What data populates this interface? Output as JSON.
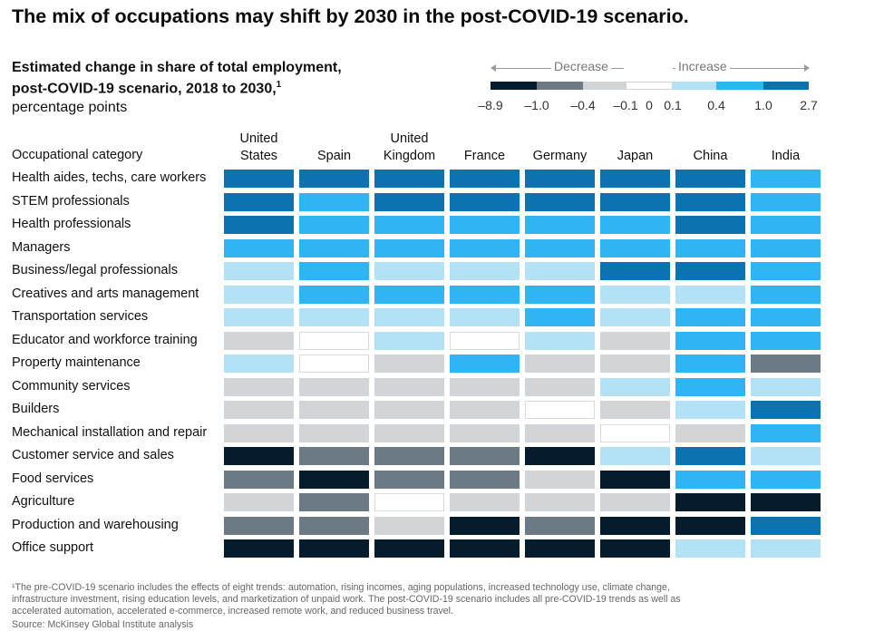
{
  "title": "The mix of occupations may shift by 2030 in the post-COVID-19 scenario.",
  "subtitle": {
    "line1": "Estimated change in share of total employment,",
    "line2": "post-COVID-19 scenario, 2018 to 2030,",
    "line2_sup": "1",
    "line3": "percentage points"
  },
  "legend": {
    "decrease_label": "Decrease",
    "increase_label": "Increase",
    "ticks": [
      "–8.9",
      "–1.0",
      "–0.4",
      "–0.1",
      "0",
      "0.1",
      "0.4",
      "1.0",
      "2.7"
    ],
    "colors": [
      "#051c2c",
      "#6b7a85",
      "#d2d5d8",
      "#ffffff",
      "#b3e2f7",
      "#2fb5f3",
      "#0b73b0"
    ]
  },
  "colors": {
    "d3": "#051c2c",
    "d2": "#6b7a85",
    "d1": "#d2d5d8",
    "n": "#ffffff",
    "i1": "#b3e2f7",
    "i2": "#2fb5f3",
    "i3": "#0b73b0"
  },
  "chart_data": {
    "type": "heatmap",
    "title": "The mix of occupations may shift by 2030 in the post-COVID-19 scenario.",
    "value_scale_bins": [
      "–8.9 to –1.0",
      "–1.0 to –0.4",
      "–0.4 to –0.1",
      "–0.1 to 0.1",
      "0.1 to 0.4",
      "0.4 to 1.0",
      "1.0 to 2.7"
    ],
    "row_header": "Occupational category",
    "columns": [
      {
        "line1": "United",
        "line2": "States"
      },
      {
        "line1": "",
        "line2": "Spain"
      },
      {
        "line1": "United",
        "line2": "Kingdom"
      },
      {
        "line1": "",
        "line2": "France"
      },
      {
        "line1": "",
        "line2": "Germany"
      },
      {
        "line1": "",
        "line2": "Japan"
      },
      {
        "line1": "",
        "line2": "China"
      },
      {
        "line1": "",
        "line2": "India"
      }
    ],
    "rows": [
      {
        "label": "Health aides, techs, care workers",
        "values": [
          "i3",
          "i3",
          "i3",
          "i3",
          "i3",
          "i3",
          "i3",
          "i2"
        ]
      },
      {
        "label": "STEM professionals",
        "values": [
          "i3",
          "i2",
          "i3",
          "i3",
          "i3",
          "i3",
          "i3",
          "i2"
        ]
      },
      {
        "label": "Health professionals",
        "values": [
          "i3",
          "i2",
          "i2",
          "i2",
          "i2",
          "i2",
          "i3",
          "i2"
        ]
      },
      {
        "label": "Managers",
        "values": [
          "i2",
          "i2",
          "i2",
          "i2",
          "i2",
          "i2",
          "i2",
          "i2"
        ]
      },
      {
        "label": "Business/legal professionals",
        "values": [
          "i1",
          "i2",
          "i1",
          "i1",
          "i1",
          "i3",
          "i3",
          "i2"
        ]
      },
      {
        "label": "Creatives and arts management",
        "values": [
          "i1",
          "i2",
          "i2",
          "i2",
          "i2",
          "i1",
          "i1",
          "i2"
        ]
      },
      {
        "label": "Transportation services",
        "values": [
          "i1",
          "i1",
          "i1",
          "i1",
          "i2",
          "i1",
          "i2",
          "i2"
        ]
      },
      {
        "label": "Educator and workforce training",
        "values": [
          "d1",
          "n",
          "i1",
          "n",
          "i1",
          "d1",
          "i2",
          "i2"
        ]
      },
      {
        "label": "Property maintenance",
        "values": [
          "i1",
          "n",
          "d1",
          "i2",
          "d1",
          "d1",
          "i2",
          "d2"
        ]
      },
      {
        "label": "Community services",
        "values": [
          "d1",
          "d1",
          "d1",
          "d1",
          "d1",
          "i1",
          "i2",
          "i1"
        ]
      },
      {
        "label": "Builders",
        "values": [
          "d1",
          "d1",
          "d1",
          "d1",
          "n",
          "d1",
          "i1",
          "i3"
        ]
      },
      {
        "label": "Mechanical installation and repair",
        "values": [
          "d1",
          "d1",
          "d1",
          "d1",
          "d1",
          "n",
          "d1",
          "i2"
        ]
      },
      {
        "label": "Customer service and sales",
        "values": [
          "d3",
          "d2",
          "d2",
          "d2",
          "d3",
          "i1",
          "i3",
          "i1"
        ]
      },
      {
        "label": "Food services",
        "values": [
          "d2",
          "d3",
          "d2",
          "d2",
          "d1",
          "d3",
          "i2",
          "i2"
        ]
      },
      {
        "label": "Agriculture",
        "values": [
          "d1",
          "d2",
          "n",
          "d1",
          "d1",
          "d1",
          "d3",
          "d3"
        ]
      },
      {
        "label": "Production and warehousing",
        "values": [
          "d2",
          "d2",
          "d1",
          "d3",
          "d2",
          "d3",
          "d3",
          "i3"
        ]
      },
      {
        "label": "Office support",
        "values": [
          "d3",
          "d3",
          "d3",
          "d3",
          "d3",
          "d3",
          "i1",
          "i1"
        ]
      }
    ]
  },
  "footnote": {
    "line1": "¹The pre-COVID-19 scenario includes the effects of eight trends: automation, rising incomes, aging populations, increased technology use, climate change,",
    "line2": "infrastructure investment, rising education levels, and marketization of unpaid work. The post-COVID-19 scenario includes all pre-COVID-19 trends as well as",
    "line3": "accelerated automation, accelerated e-commerce, increased remote work, and reduced business travel.",
    "source": "Source: McKinsey Global Institute analysis"
  }
}
